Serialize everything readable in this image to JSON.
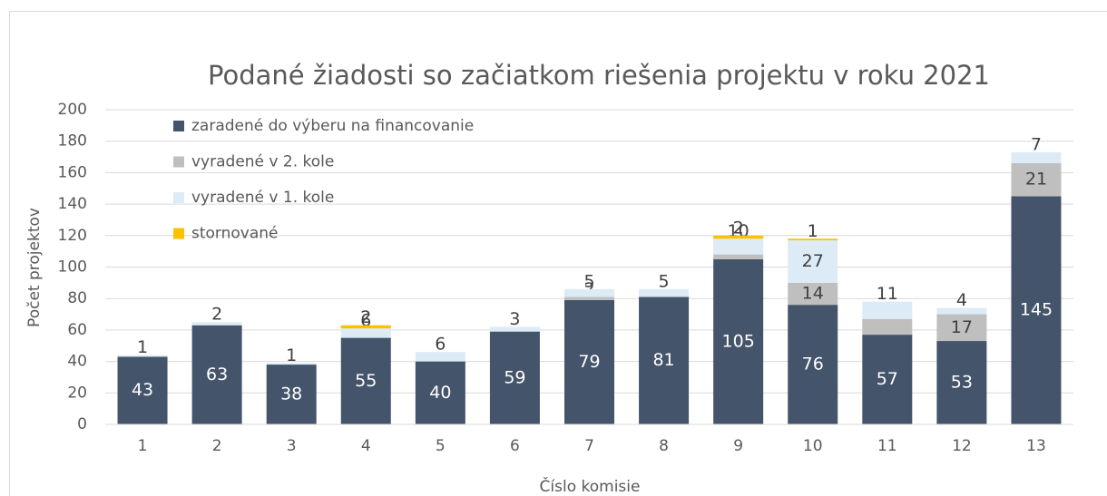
{
  "chart_data": {
    "type": "stacked_bar",
    "title": "Podané žiadosti so začiatkom riešenia projektu v roku 2021",
    "x_label": "Číslo komisie",
    "y_label": "Počet projektov",
    "categories": [
      "1",
      "2",
      "3",
      "4",
      "5",
      "6",
      "7",
      "8",
      "9",
      "10",
      "11",
      "12",
      "13"
    ],
    "series": [
      {
        "name": "zaradené do výberu na financovanie",
        "color": "#44546a",
        "values": [
          43,
          63,
          38,
          55,
          40,
          59,
          79,
          81,
          105,
          76,
          57,
          53,
          145
        ]
      },
      {
        "name": "vyradené v 2. kole",
        "color": "#bfbfbf",
        "values": [
          null,
          null,
          null,
          null,
          null,
          null,
          2,
          null,
          3,
          14,
          10,
          17,
          21
        ]
      },
      {
        "name": "vyradené v 1. kole",
        "color": "#ddebf7",
        "values": [
          1,
          2,
          1,
          6,
          6,
          3,
          5,
          5,
          10,
          27,
          11,
          4,
          7
        ]
      },
      {
        "name": "stornované",
        "color": "#ffc000",
        "values": [
          null,
          null,
          null,
          2,
          null,
          null,
          null,
          null,
          2,
          1,
          null,
          null,
          null
        ]
      }
    ],
    "ylim": [
      0,
      200
    ],
    "yticks": [
      0,
      20,
      40,
      60,
      80,
      100,
      120,
      140,
      160,
      180,
      200
    ],
    "grid": true,
    "legend": "top-left"
  }
}
